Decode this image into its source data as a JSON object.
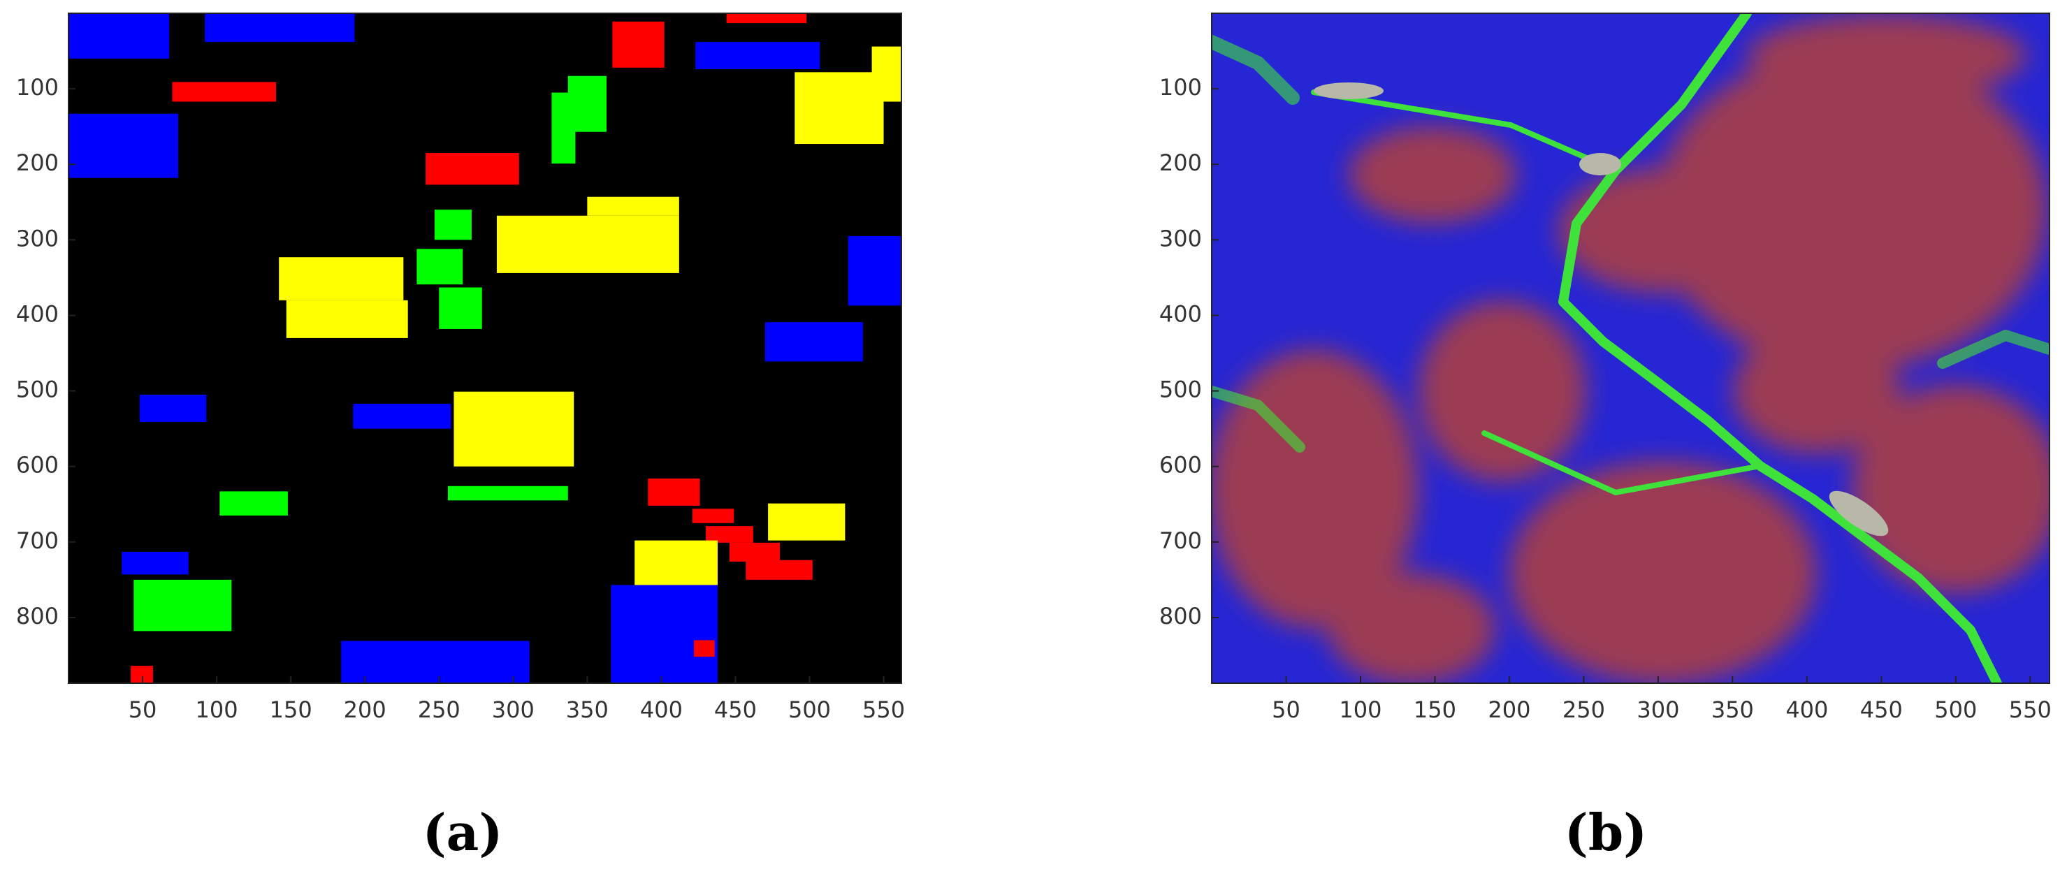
{
  "chart_data": [
    {
      "type": "image",
      "label": "(a)",
      "xlim": [
        0,
        562
      ],
      "ylim": [
        0,
        887
      ],
      "xticks": [
        50,
        100,
        150,
        200,
        250,
        300,
        350,
        400,
        450,
        500,
        550
      ],
      "yticks": [
        100,
        200,
        300,
        400,
        500,
        600,
        700,
        800
      ],
      "background": "#000000",
      "regions": [
        {
          "color": "#0000ff",
          "x": [
            0,
            68
          ],
          "y": [
            0,
            60
          ]
        },
        {
          "color": "#0000ff",
          "x": [
            92,
            193
          ],
          "y": [
            0,
            38
          ]
        },
        {
          "color": "#ff0000",
          "x": [
            444,
            498
          ],
          "y": [
            0,
            13
          ]
        },
        {
          "color": "#ff0000",
          "x": [
            367,
            402
          ],
          "y": [
            11,
            72
          ]
        },
        {
          "color": "#0000ff",
          "x": [
            423,
            507
          ],
          "y": [
            38,
            74
          ]
        },
        {
          "color": "#ffff00",
          "x": [
            490,
            550
          ],
          "y": [
            78,
            173
          ]
        },
        {
          "color": "#ffff00",
          "x": [
            542,
            562
          ],
          "y": [
            44,
            117
          ]
        },
        {
          "color": "#ff0000",
          "x": [
            70,
            140
          ],
          "y": [
            91,
            117
          ]
        },
        {
          "color": "#0000ff",
          "x": [
            0,
            74
          ],
          "y": [
            133,
            218
          ]
        },
        {
          "color": "#00ff00",
          "x": [
            326,
            342
          ],
          "y": [
            105,
            199
          ]
        },
        {
          "color": "#00ff00",
          "x": [
            337,
            363
          ],
          "y": [
            83,
            157
          ]
        },
        {
          "color": "#ff0000",
          "x": [
            241,
            304
          ],
          "y": [
            185,
            227
          ]
        },
        {
          "color": "#00ff00",
          "x": [
            247,
            272
          ],
          "y": [
            260,
            300
          ]
        },
        {
          "color": "#ffff00",
          "x": [
            289,
            412
          ],
          "y": [
            268,
            344
          ]
        },
        {
          "color": "#ffff00",
          "x": [
            350,
            412
          ],
          "y": [
            243,
            268
          ]
        },
        {
          "color": "#ffff00",
          "x": [
            142,
            226
          ],
          "y": [
            323,
            380
          ]
        },
        {
          "color": "#ffff00",
          "x": [
            147,
            229
          ],
          "y": [
            380,
            430
          ]
        },
        {
          "color": "#00ff00",
          "x": [
            235,
            266
          ],
          "y": [
            312,
            359
          ]
        },
        {
          "color": "#00ff00",
          "x": [
            250,
            279
          ],
          "y": [
            363,
            418
          ]
        },
        {
          "color": "#0000ff",
          "x": [
            526,
            562
          ],
          "y": [
            295,
            387
          ]
        },
        {
          "color": "#0000ff",
          "x": [
            470,
            536
          ],
          "y": [
            409,
            461
          ]
        },
        {
          "color": "#0000ff",
          "x": [
            48,
            93
          ],
          "y": [
            505,
            541
          ]
        },
        {
          "color": "#0000ff",
          "x": [
            192,
            258
          ],
          "y": [
            517,
            550
          ]
        },
        {
          "color": "#ffff00",
          "x": [
            260,
            341
          ],
          "y": [
            501,
            600
          ]
        },
        {
          "color": "#00ff00",
          "x": [
            256,
            337
          ],
          "y": [
            626,
            645
          ]
        },
        {
          "color": "#00ff00",
          "x": [
            102,
            148
          ],
          "y": [
            633,
            665
          ]
        },
        {
          "color": "#ff0000",
          "x": [
            391,
            426
          ],
          "y": [
            616,
            652
          ]
        },
        {
          "color": "#ff0000",
          "x": [
            421,
            449
          ],
          "y": [
            656,
            675
          ]
        },
        {
          "color": "#ff0000",
          "x": [
            430,
            462
          ],
          "y": [
            679,
            701
          ]
        },
        {
          "color": "#ff0000",
          "x": [
            446,
            480
          ],
          "y": [
            701,
            726
          ]
        },
        {
          "color": "#ff0000",
          "x": [
            457,
            502
          ],
          "y": [
            724,
            750
          ]
        },
        {
          "color": "#ffff00",
          "x": [
            472,
            524
          ],
          "y": [
            649,
            698
          ]
        },
        {
          "color": "#ffff00",
          "x": [
            382,
            438
          ],
          "y": [
            698,
            765
          ]
        },
        {
          "color": "#0000ff",
          "x": [
            36,
            81
          ],
          "y": [
            713,
            743
          ]
        },
        {
          "color": "#00ff00",
          "x": [
            44,
            110
          ],
          "y": [
            750,
            818
          ]
        },
        {
          "color": "#0000ff",
          "x": [
            366,
            438
          ],
          "y": [
            757,
            887
          ]
        },
        {
          "color": "#0000ff",
          "x": [
            184,
            311
          ],
          "y": [
            831,
            887
          ]
        },
        {
          "color": "#ff0000",
          "x": [
            422,
            436
          ],
          "y": [
            830,
            852
          ]
        },
        {
          "color": "#ff0000",
          "x": [
            42,
            57
          ],
          "y": [
            864,
            887
          ]
        }
      ]
    },
    {
      "type": "image",
      "label": "(b)",
      "xlim": [
        0,
        563
      ],
      "ylim": [
        0,
        887
      ],
      "xticks": [
        50,
        100,
        150,
        200,
        250,
        300,
        350,
        400,
        450,
        500,
        550
      ],
      "yticks": [
        100,
        200,
        300,
        400,
        500,
        600,
        700,
        800
      ]
    }
  ]
}
